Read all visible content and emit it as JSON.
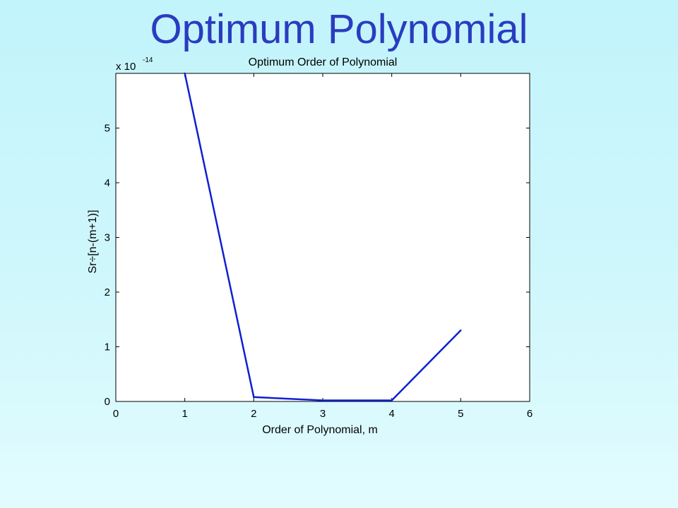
{
  "slide": {
    "title": "Optimum Polynomial"
  },
  "chart_data": {
    "type": "line",
    "title": "Optimum Order of Polynomial",
    "xlabel": "Order of Polynomial, m",
    "ylabel": "Sr÷[n-(m+1)]",
    "y_multiplier": {
      "base": "x 10",
      "exponent": "-14"
    },
    "xlim": [
      0,
      6
    ],
    "ylim": [
      0,
      6
    ],
    "xticks": [
      0,
      1,
      2,
      3,
      4,
      5,
      6
    ],
    "yticks": [
      0,
      1,
      2,
      3,
      4,
      5
    ],
    "grid": false,
    "series": [
      {
        "x": [
          1,
          2,
          3,
          4,
          5
        ],
        "values": [
          6.0,
          0.08,
          0.02,
          0.02,
          1.3
        ],
        "color": "#1020d0"
      }
    ]
  }
}
